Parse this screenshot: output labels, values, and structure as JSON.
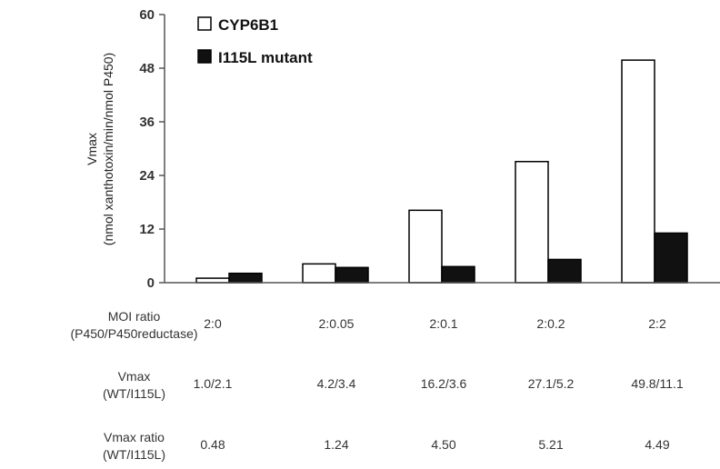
{
  "chart_data": {
    "type": "bar",
    "categories": [
      "2:0",
      "2:0.05",
      "2:0.1",
      "2:0.2",
      "2:2"
    ],
    "series": [
      {
        "name": "CYP6B1",
        "values": [
          1.0,
          4.2,
          16.2,
          27.1,
          49.8
        ],
        "fill": "#ffffff",
        "stroke": "#000000"
      },
      {
        "name": "I115L mutant",
        "values": [
          2.1,
          3.4,
          3.6,
          5.2,
          11.1
        ],
        "fill": "#111111",
        "stroke": "#000000"
      }
    ],
    "ylabel_line1": "Vmax",
    "ylabel_line2": "(nmol xanthotoxin/min/nmol P450)",
    "ylim": [
      0,
      60
    ],
    "yticks": [
      0,
      12,
      24,
      36,
      48,
      60
    ],
    "legend_position": "top-left",
    "grid": false
  },
  "table": {
    "rows": [
      {
        "label_line1": "MOI ratio",
        "label_line2": "(P450/P450reductase)",
        "cells": [
          "2:0",
          "2:0.05",
          "2:0.1",
          "2:0.2",
          "2:2"
        ]
      },
      {
        "label_line1": "Vmax",
        "label_line2": "(WT/I115L)",
        "cells": [
          "1.0/2.1",
          "4.2/3.4",
          "16.2/3.6",
          "27.1/5.2",
          "49.8/11.1"
        ]
      },
      {
        "label_line1": "Vmax ratio",
        "label_line2": "(WT/I115L)",
        "cells": [
          "0.48",
          "1.24",
          "4.50",
          "5.21",
          "4.49"
        ]
      }
    ]
  }
}
